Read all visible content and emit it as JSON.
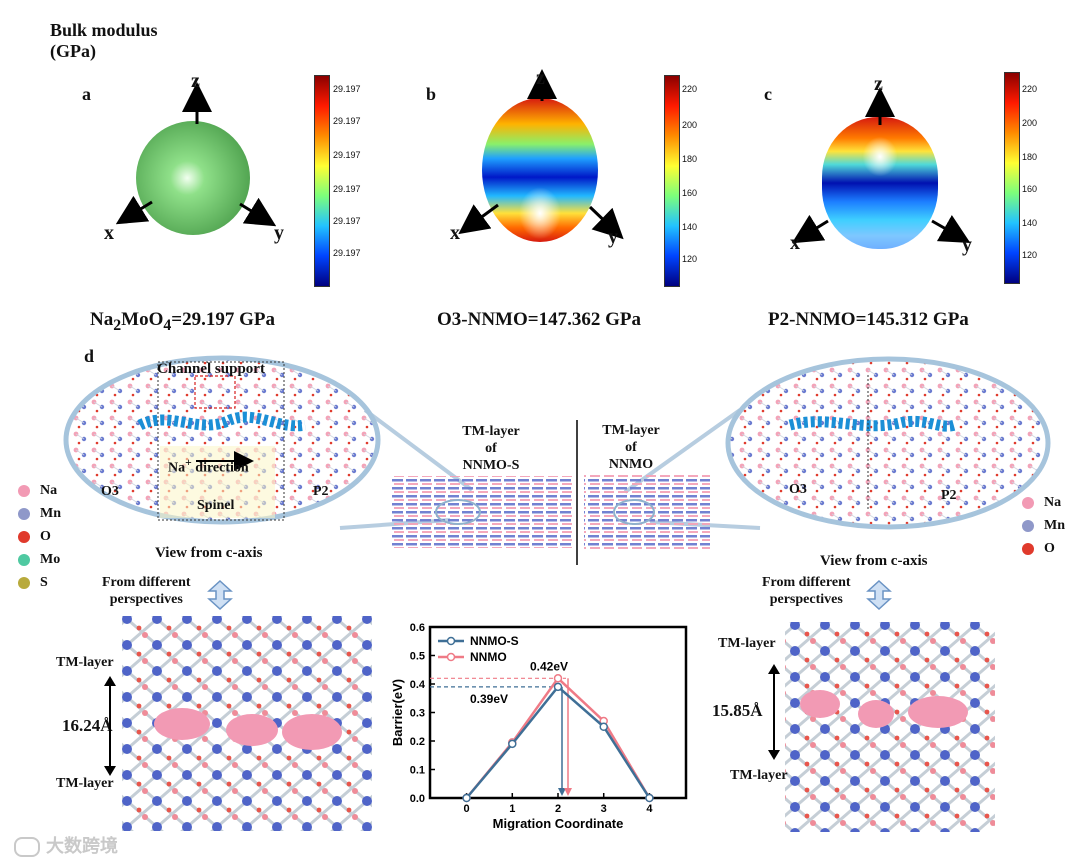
{
  "header": {
    "line1": "Bulk modulus",
    "line2": "(GPa)"
  },
  "panels": {
    "a": {
      "label": "a",
      "caption_main": "Na",
      "caption_sub1": "2",
      "caption_mid": "MoO",
      "caption_sub2": "4",
      "caption_tail": "=29.197 GPa",
      "colorbar_ticks": [
        "29.197",
        "29.197",
        "29.197",
        "29.197",
        "29.197",
        "29.197"
      ]
    },
    "b": {
      "label": "b",
      "caption": "O3-NNMO=147.362 GPa",
      "colorbar_ticks": [
        "220",
        "200",
        "180",
        "160",
        "140",
        "120"
      ]
    },
    "c": {
      "label": "c",
      "caption": "P2-NNMO=145.312 GPa",
      "colorbar_ticks": [
        "220",
        "200",
        "180",
        "160",
        "140",
        "120"
      ]
    }
  },
  "axes": {
    "x": "x",
    "y": "y",
    "z": "z"
  },
  "panel_d": {
    "label": "d",
    "left_ellipse": {
      "channel": "Channel support",
      "na_dir_prefix": "Na",
      "na_dir_sup": "+",
      "na_dir_suffix": " direction",
      "spinel": "Spinel",
      "o3": "O3",
      "p2": "P2"
    },
    "right_ellipse": {
      "o3": "O3",
      "p2": "P2"
    },
    "center_left": [
      "TM-layer",
      "of",
      "NNMO-S"
    ],
    "center_right": [
      "TM-layer",
      "of",
      "NNMO"
    ],
    "view_left": "View from c-axis",
    "view_right": "View from c-axis",
    "persp_left": [
      "From different",
      "perspectives"
    ],
    "persp_right": [
      "From different",
      "perspectives"
    ],
    "legend_left": [
      {
        "name": "Na",
        "color": "#f29ab4"
      },
      {
        "name": "Mn",
        "color": "#8f98c9"
      },
      {
        "name": "O",
        "color": "#e03a2c"
      },
      {
        "name": "Mo",
        "color": "#4fc9a1"
      },
      {
        "name": "S",
        "color": "#b8aa3c"
      }
    ],
    "legend_right": [
      {
        "name": "Na",
        "color": "#f29ab4"
      },
      {
        "name": "Mn",
        "color": "#8f98c9"
      },
      {
        "name": "O",
        "color": "#e03a2c"
      }
    ],
    "left_struct": {
      "top": "TM-layer",
      "dist": "16.24Å",
      "bottom": "TM-layer"
    },
    "right_struct": {
      "top": "TM-layer",
      "dist": "15.85Å",
      "bottom": "TM-layer"
    }
  },
  "chart_data": {
    "type": "line",
    "xlabel": "Migration Coordinate",
    "ylabel": "Barrier(eV)",
    "x": [
      0,
      1,
      2,
      3,
      4
    ],
    "xticks": [
      "0",
      "1",
      "2",
      "3",
      "4"
    ],
    "yticks": [
      "0.0",
      "0.1",
      "0.2",
      "0.3",
      "0.4",
      "0.5",
      "0.6"
    ],
    "ylim": [
      0,
      0.6
    ],
    "xlim": [
      -0.8,
      4.8
    ],
    "series": [
      {
        "name": "NNMO-S",
        "color": "#3f6f96",
        "values": [
          0.0,
          0.19,
          0.39,
          0.25,
          0.0
        ]
      },
      {
        "name": "NNMO",
        "color": "#ef7a86",
        "values": [
          0.0,
          0.195,
          0.42,
          0.27,
          0.0
        ]
      }
    ],
    "annotations": [
      "0.42eV",
      "0.39eV"
    ]
  },
  "watermark": "大数跨境"
}
